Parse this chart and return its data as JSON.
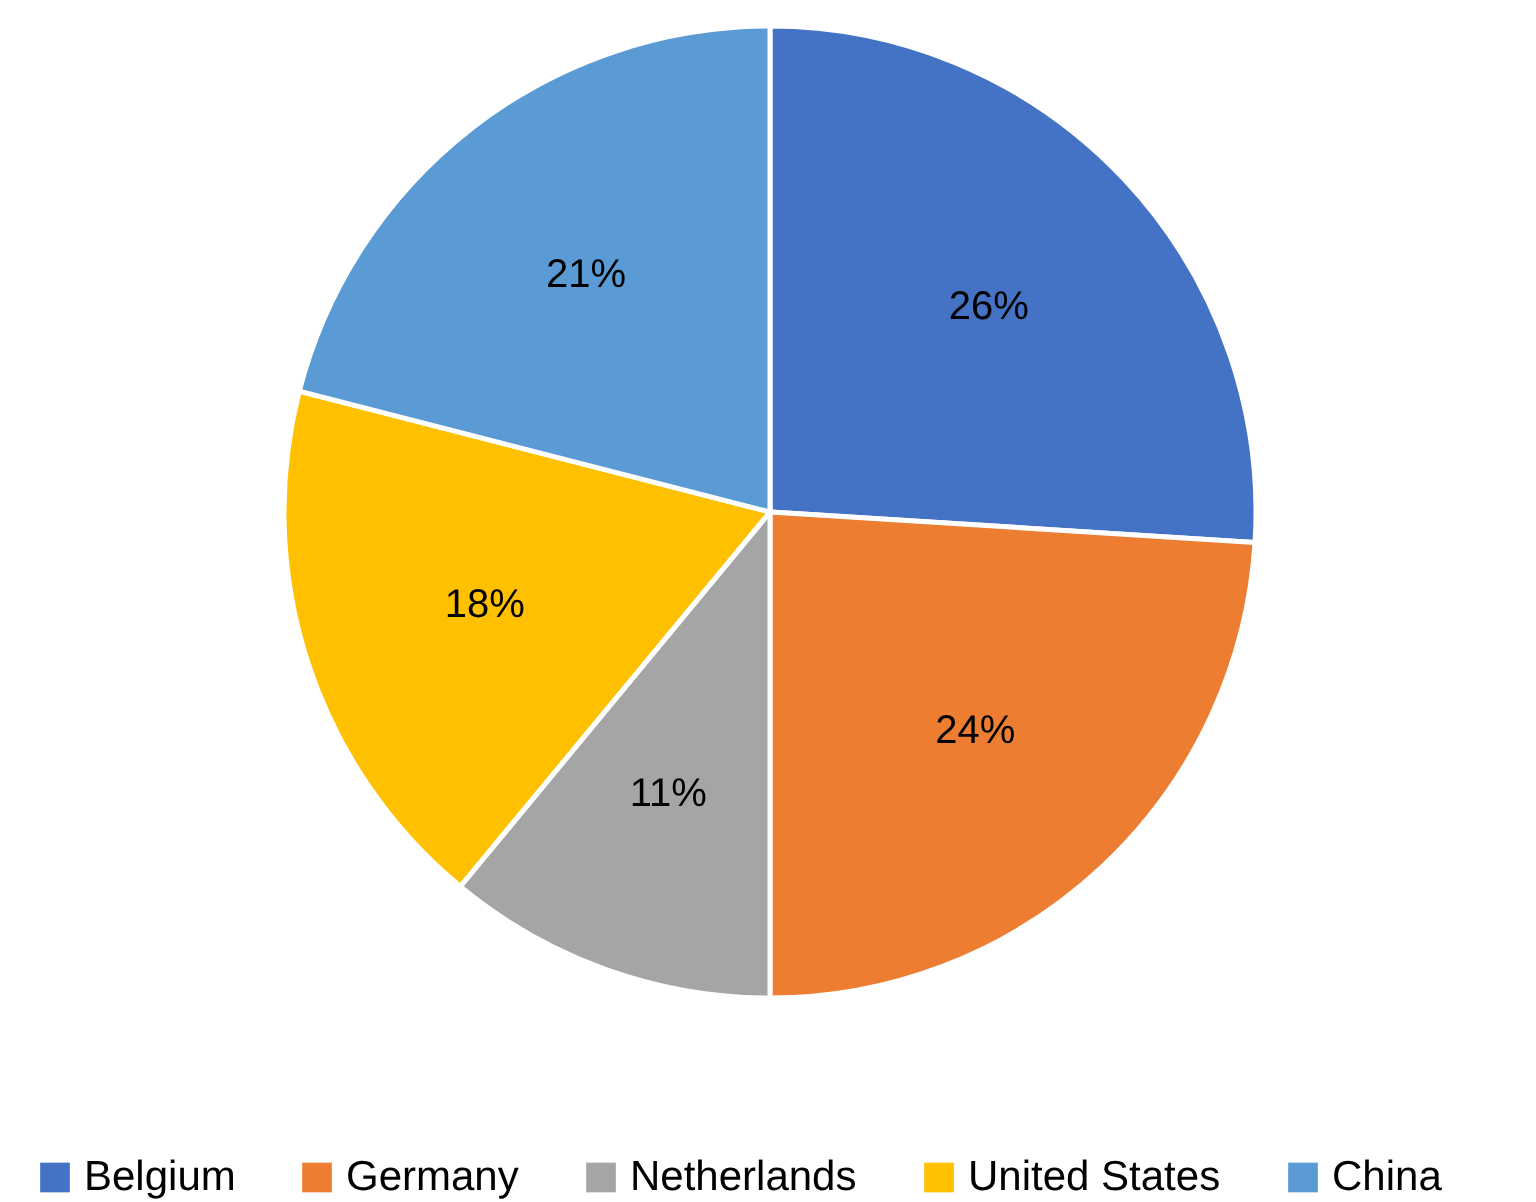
{
  "chart_data": {
    "type": "pie",
    "categories": [
      "Belgium",
      "Germany",
      "Netherlands",
      "United States",
      "China"
    ],
    "values": [
      26,
      24,
      11,
      18,
      21
    ],
    "colors": [
      "#4472c4",
      "#ed7d31",
      "#a5a5a5",
      "#ffc000",
      "#5b9bd5"
    ],
    "value_labels": [
      "26%",
      "24%",
      "11%",
      "18%",
      "21%"
    ],
    "legend": "bottom"
  }
}
